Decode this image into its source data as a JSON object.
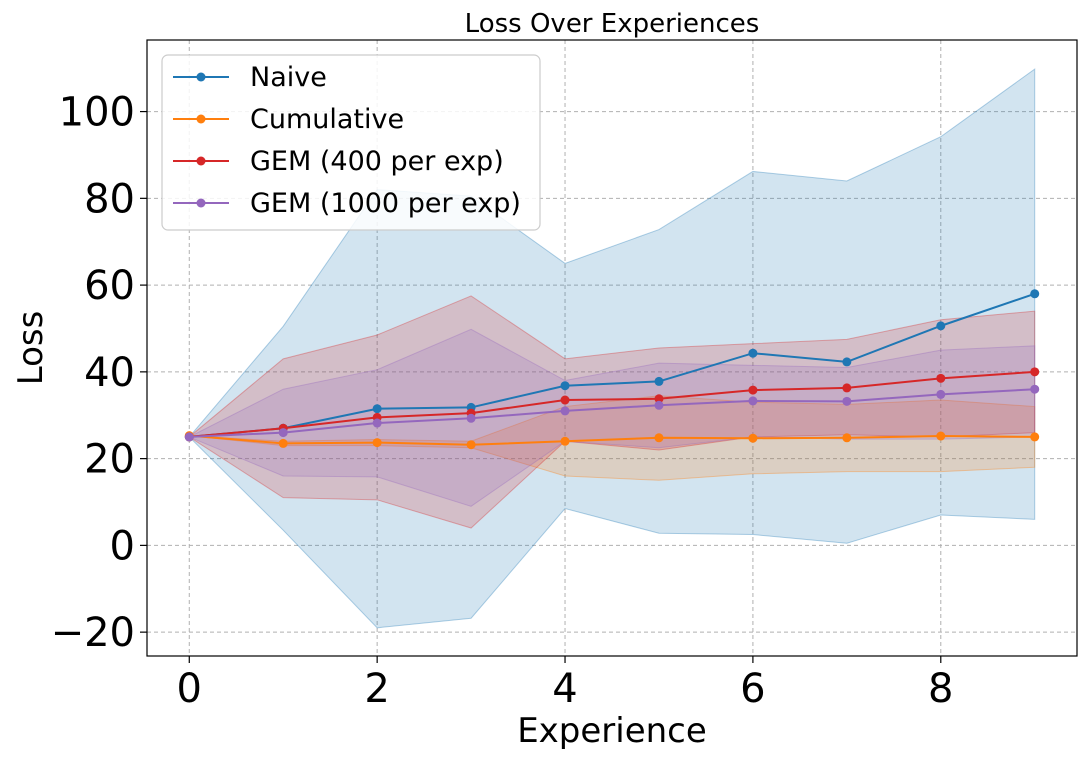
{
  "chart_data": {
    "type": "line",
    "title": "Loss Over Experiences",
    "xlabel": "Experience",
    "ylabel": "Loss",
    "x": [
      0,
      1,
      2,
      3,
      4,
      5,
      6,
      7,
      8,
      9
    ],
    "xlim": [
      -0.45,
      9.45
    ],
    "ylim": [
      -25.5,
      116.5
    ],
    "xticks": [
      0,
      2,
      4,
      6,
      8
    ],
    "yticks": [
      -20,
      0,
      20,
      40,
      60,
      80,
      100
    ],
    "grid": true,
    "legend_position": "top-left",
    "series": [
      {
        "name": "Naive",
        "color": "#1f77b4",
        "values": [
          25.0,
          27.0,
          31.5,
          31.8,
          36.8,
          37.8,
          44.3,
          42.3,
          50.6,
          58.0
        ],
        "band_lower": [
          25.0,
          3.5,
          -19.0,
          -16.8,
          8.5,
          2.8,
          2.5,
          0.5,
          7.0,
          6.0
        ],
        "band_upper": [
          25.0,
          50.5,
          82.0,
          80.5,
          65.0,
          72.8,
          86.2,
          84.0,
          94.2,
          109.8
        ]
      },
      {
        "name": "Cumulative",
        "color": "#ff7f0e",
        "values": [
          25.3,
          23.5,
          23.7,
          23.2,
          24.0,
          24.8,
          24.7,
          24.8,
          25.2,
          25.0
        ],
        "band_lower": [
          25.3,
          23.0,
          23.0,
          22.5,
          16.0,
          15.0,
          16.5,
          17.0,
          17.0,
          18.0
        ],
        "band_upper": [
          25.3,
          24.0,
          24.4,
          24.0,
          32.0,
          34.5,
          33.0,
          32.5,
          33.5,
          32.0
        ]
      },
      {
        "name": "GEM (400 per exp)",
        "color": "#d62728",
        "values": [
          25.0,
          27.0,
          29.5,
          30.5,
          33.5,
          33.8,
          35.8,
          36.3,
          38.5,
          40.0
        ],
        "band_lower": [
          25.0,
          11.0,
          10.5,
          4.0,
          24.0,
          22.0,
          25.0,
          25.5,
          25.0,
          26.0
        ],
        "band_upper": [
          25.0,
          43.0,
          48.5,
          57.5,
          43.0,
          45.5,
          46.5,
          47.5,
          52.0,
          54.0
        ]
      },
      {
        "name": "GEM (1000 per exp)",
        "color": "#9467bd",
        "values": [
          25.0,
          26.0,
          28.2,
          29.3,
          31.0,
          32.3,
          33.3,
          33.2,
          34.8,
          36.0
        ],
        "band_lower": [
          25.0,
          16.0,
          15.8,
          9.0,
          24.0,
          22.5,
          25.0,
          24.5,
          24.5,
          25.0
        ],
        "band_upper": [
          25.0,
          36.0,
          40.5,
          49.8,
          38.0,
          42.0,
          41.5,
          41.0,
          45.0,
          46.0
        ]
      }
    ]
  }
}
